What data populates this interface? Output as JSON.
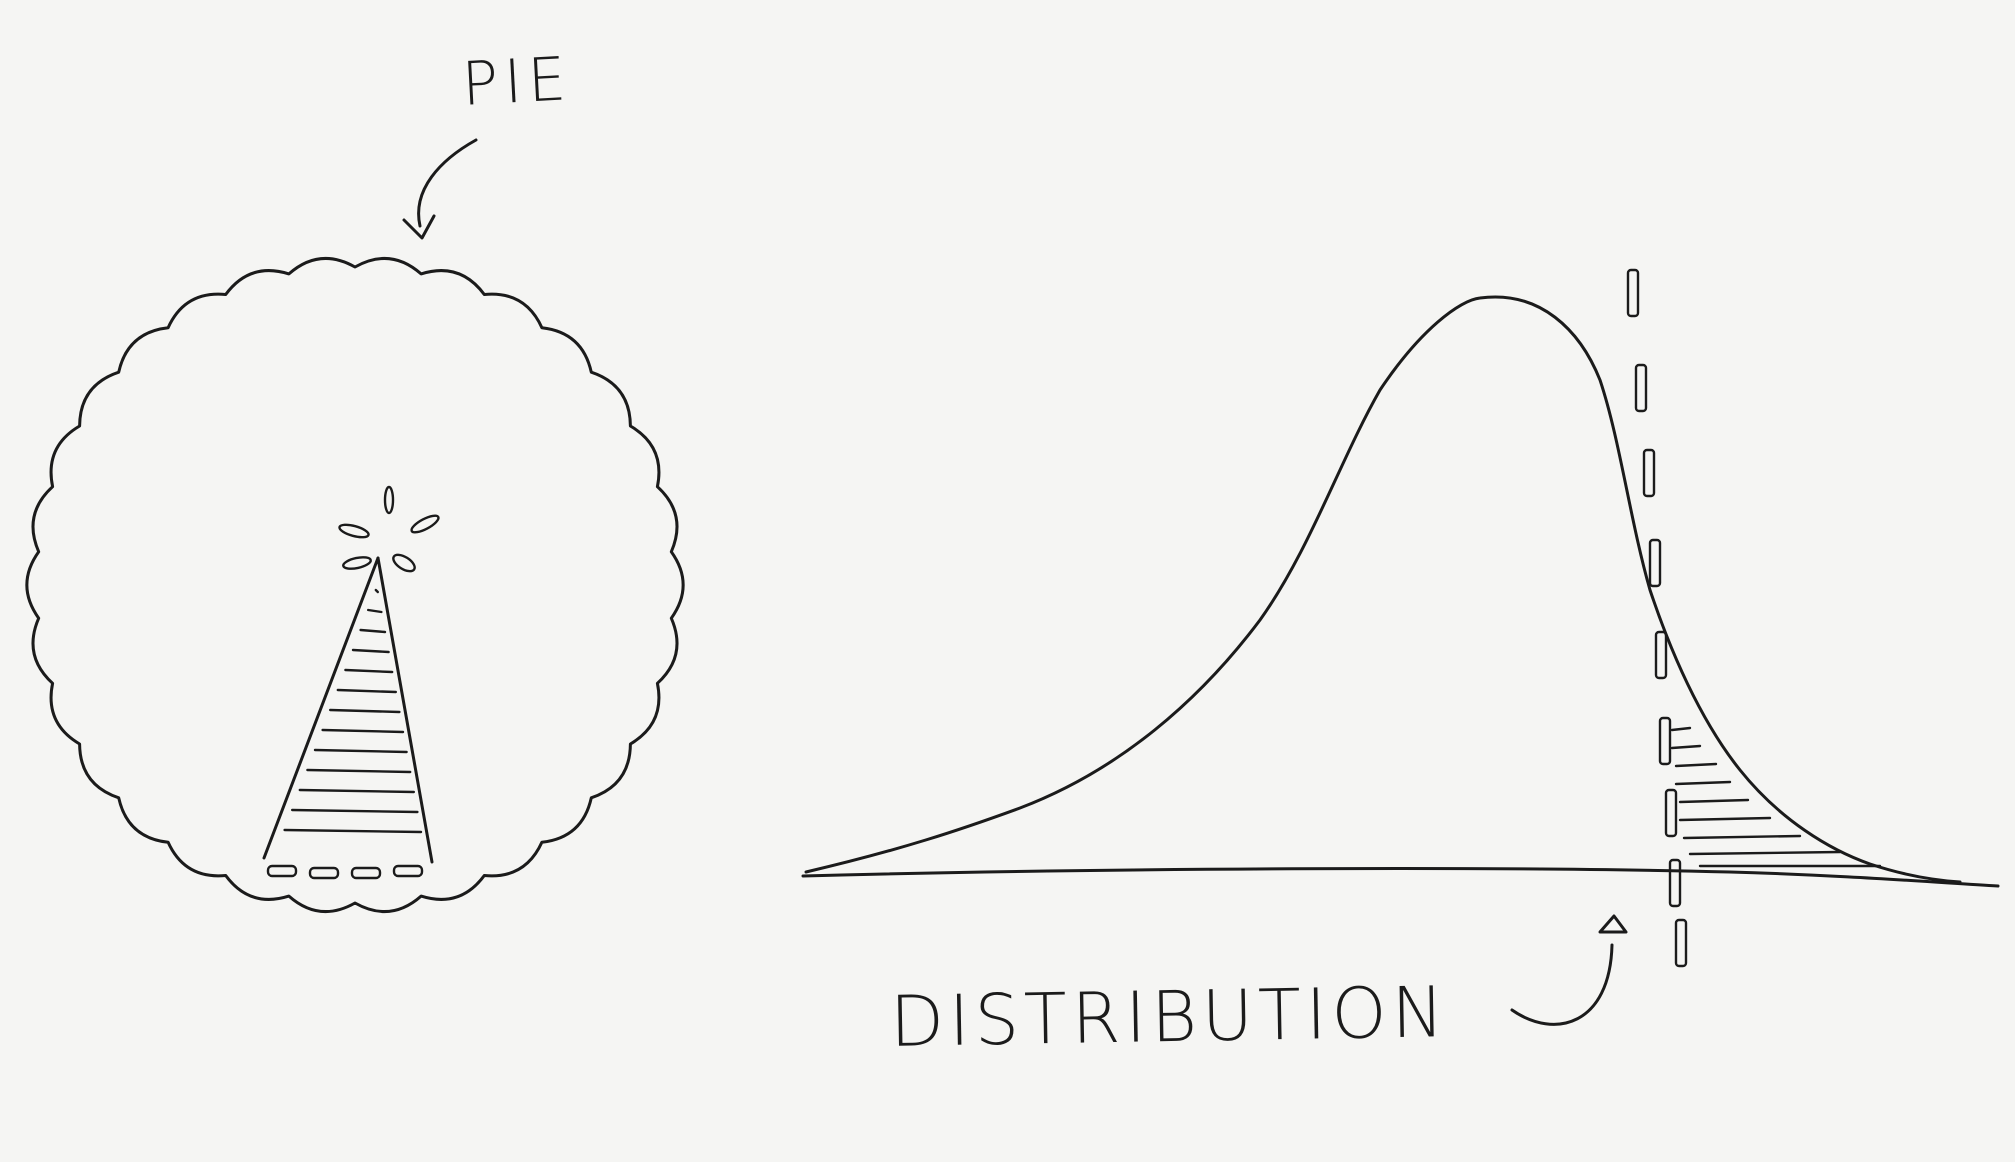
{
  "labels": {
    "pie": "PIE",
    "distribution": "DISTRIBUTION"
  },
  "ink_color": "#1b1b1b",
  "paper_color": "#f5f5f3"
}
